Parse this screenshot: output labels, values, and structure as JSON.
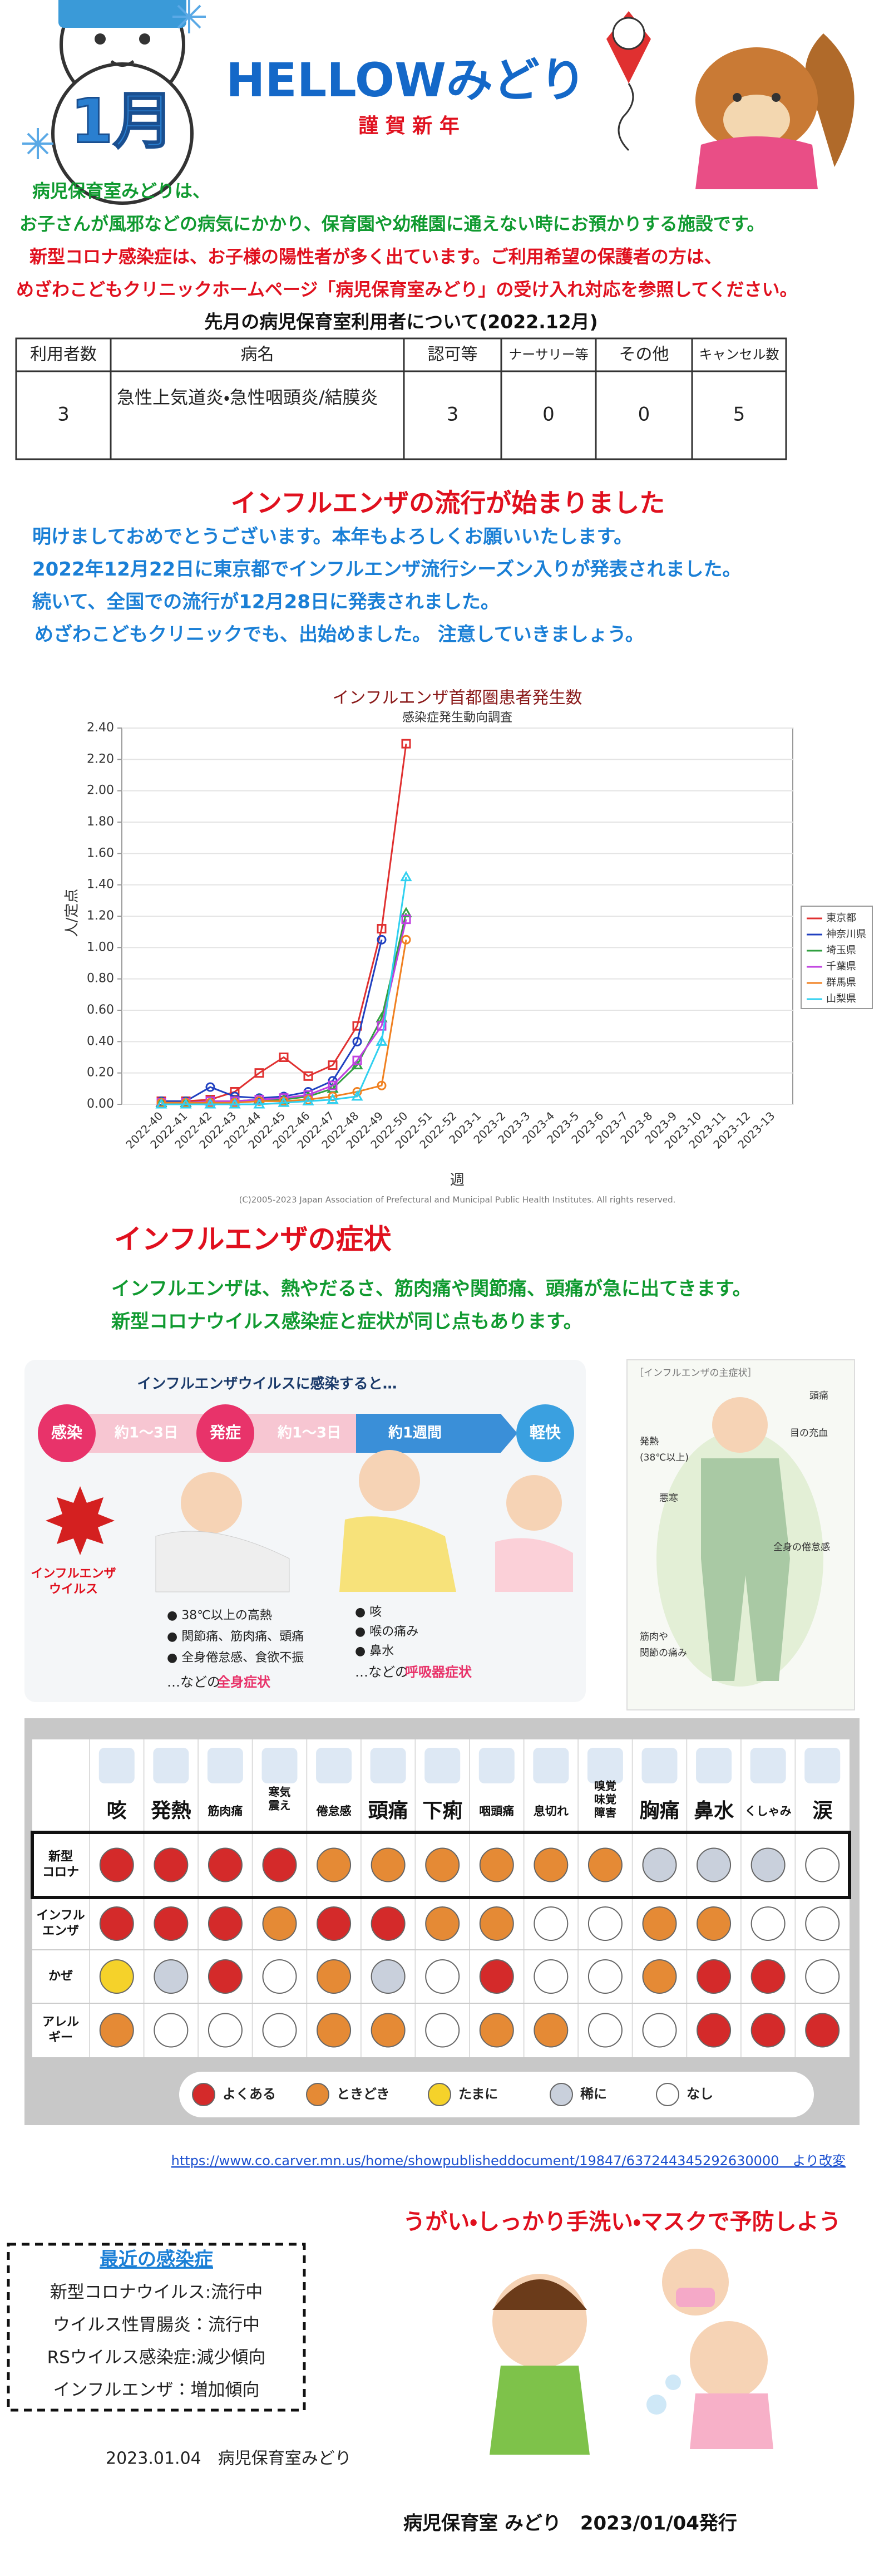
{
  "header": {
    "title": "HELLOWみどり",
    "greeting": "謹 賀 新 年",
    "month_badge": "1月"
  },
  "intro": {
    "lines": [
      "病児保育室みどりは、",
      "お子さんが風邪などの病気にかかり、保育園や幼稚園に通えない時にお預かりする施設です。",
      "新型コロナ感染症は、お子様の陽性者が多く出ています。ご利用希望の保護者の方は、",
      "めざわこどもクリニックホームページ「病児保育室みどり」の受け入れ対応を参照してください。"
    ]
  },
  "usage_table": {
    "caption": "先月の病児保育室利用者について(2022.12月)",
    "headers": [
      "利用者数",
      "病名",
      "認可等",
      "ナーサリー等",
      "その他",
      "キャンセル数"
    ],
    "rows": [
      [
        "3",
        "急性上気道炎・急性咽頭炎/結膜炎",
        "3",
        "0",
        "0",
        "5"
      ]
    ]
  },
  "flu_news": {
    "heading": "インフルエンザの流行が始まりました",
    "lines": [
      "明けましておめでとうございます。本年もよろしくお願いいたします。",
      "2022年12月22日に東京都でインフルエンザ流行シーズン入りが発表されました。",
      "続いて、全国での流行が12月28日に発表されました。",
      " めざわこどもクリニックでも、出始めました。 注意していきましょう。"
    ]
  },
  "flu_chart": {
    "type": "line",
    "title": "インフルエンザ首都圏患者発生数",
    "subtitle": "感染症発生動向調査",
    "x_label": "週",
    "y_label": "人/定点",
    "categories": [
      "2022-40",
      "2022-41",
      "2022-42",
      "2022-43",
      "2022-44",
      "2022-45",
      "2022-46",
      "2022-47",
      "2022-48",
      "2022-49",
      "2022-50",
      "2022-51",
      "2022-52",
      "2023-1",
      "2023-2",
      "2023-3",
      "2023-4",
      "2023-5",
      "2023-6",
      "2023-7",
      "2023-8",
      "2023-9",
      "2023-10",
      "2023-11",
      "2023-12",
      "2023-13"
    ],
    "series": [
      {
        "name": "東京都",
        "color": "#e03030",
        "values": [
          0.02,
          0.02,
          0.03,
          0.08,
          0.2,
          0.3,
          0.18,
          0.25,
          0.5,
          1.12,
          2.3,
          null,
          null,
          null,
          null,
          null,
          null,
          null,
          null,
          null,
          null,
          null,
          null,
          null,
          null,
          null
        ]
      },
      {
        "name": "神奈川県",
        "color": "#2040c0",
        "values": [
          0.02,
          0.02,
          0.11,
          0.05,
          0.04,
          0.05,
          0.08,
          0.15,
          0.4,
          1.05,
          null,
          null,
          null,
          null,
          null,
          null,
          null,
          null,
          null,
          null,
          null,
          null,
          null,
          null,
          null,
          null
        ]
      },
      {
        "name": "埼玉県",
        "color": "#30a040",
        "values": [
          0.01,
          0.01,
          0.02,
          0.02,
          0.03,
          0.03,
          0.05,
          0.1,
          0.25,
          0.55,
          1.22,
          null,
          null,
          null,
          null,
          null,
          null,
          null,
          null,
          null,
          null,
          null,
          null,
          null,
          null,
          null
        ]
      },
      {
        "name": "千葉県",
        "color": "#c040e0",
        "values": [
          0.01,
          0.01,
          0.02,
          0.02,
          0.03,
          0.04,
          0.06,
          0.12,
          0.28,
          0.5,
          1.18,
          null,
          null,
          null,
          null,
          null,
          null,
          null,
          null,
          null,
          null,
          null,
          null,
          null,
          null,
          null
        ]
      },
      {
        "name": "群馬県",
        "color": "#f08020",
        "values": [
          0.01,
          0.01,
          0.01,
          0.01,
          0.02,
          0.02,
          0.03,
          0.05,
          0.08,
          0.12,
          1.05,
          null,
          null,
          null,
          null,
          null,
          null,
          null,
          null,
          null,
          null,
          null,
          null,
          null,
          null,
          null
        ]
      },
      {
        "name": "山梨県",
        "color": "#30d0f0",
        "values": [
          0,
          0,
          0,
          0,
          0,
          0.01,
          0.02,
          0.03,
          0.05,
          0.4,
          1.45,
          null,
          null,
          null,
          null,
          null,
          null,
          null,
          null,
          null,
          null,
          null,
          null,
          null,
          null,
          null
        ]
      }
    ],
    "ylim": [
      0,
      2.4
    ],
    "yticks": [
      {
        "value": 0,
        "label": "0.00"
      },
      {
        "value": 0.2,
        "label": "0.20"
      },
      {
        "value": 0.4,
        "label": "0.40"
      },
      {
        "value": 0.6,
        "label": "0.60"
      },
      {
        "value": 0.8,
        "label": "0.80"
      },
      {
        "value": 1,
        "label": "1.00"
      },
      {
        "value": 1.2,
        "label": "1.20"
      },
      {
        "value": 1.4,
        "label": "1.40"
      },
      {
        "value": 1.6,
        "label": "1.60"
      },
      {
        "value": 1.8,
        "label": "1.80"
      },
      {
        "value": 2,
        "label": "2.00"
      },
      {
        "value": 2.2,
        "label": "2.20"
      },
      {
        "value": 2.4,
        "label": "2.40"
      }
    ],
    "grid": true,
    "copyright": "(C)2005-2023 Japan Association of Prefectural and Municipal Public Health Institutes. All rights reserved."
  },
  "symptoms": {
    "heading": "インフルエンザの症状",
    "lines": [
      "インフルエンザは、熱やだるさ、筋肉痛や関節痛、頭痛が急に出てきます。",
      "新型コロナウイルス感染症と症状が同じ点もあります。"
    ]
  },
  "course": {
    "title": "インフルエンザウイルスに感染すると…",
    "stages": [
      "感染",
      "発症",
      "軽快"
    ],
    "durations": [
      "約1～3日",
      "約1～3日",
      "約1週間"
    ],
    "virus_label": [
      "インフルエンザ",
      "ウイルス"
    ],
    "systemic": [
      "● 38℃以上の高熱",
      "● 関節痛、筋肉痛、頭痛",
      "● 全身倦怠感、食欲不振"
    ],
    "systemic_tail": [
      "…などの",
      "全身症状"
    ],
    "respiratory": [
      "● 咳",
      "● 喉の痛み",
      "● 鼻水"
    ],
    "respiratory_tail": [
      "…などの",
      "呼吸器症状"
    ]
  },
  "main_symptoms": {
    "title": "［インフルエンザの主症状］",
    "labels": [
      [
        "頭痛"
      ],
      [
        "目の充血"
      ],
      [
        "発熱",
        "(38℃以上)"
      ],
      [
        "悪寒"
      ],
      [
        "全身の倦怠感"
      ],
      [
        "筋肉や",
        "関節の痛み"
      ]
    ]
  },
  "comparison": {
    "columns": [
      [
        "咳"
      ],
      [
        "発熱"
      ],
      [
        "筋肉痛"
      ],
      [
        "寒気",
        "震え"
      ],
      [
        "倦怠感"
      ],
      [
        "頭痛"
      ],
      [
        "下痢"
      ],
      [
        "咽頭痛"
      ],
      [
        "息切れ"
      ],
      [
        "嗅覚",
        "味覚",
        "障害"
      ],
      [
        "胸痛"
      ],
      [
        "鼻水"
      ],
      [
        "くしゃみ"
      ],
      [
        "涙"
      ]
    ],
    "rows": [
      {
        "label": [
          "新型",
          "コロナ"
        ],
        "cells": [
          "#d42a2a",
          "#d42a2a",
          "#d42a2a",
          "#d42a2a",
          "#e58a35",
          "#e58a35",
          "#e58a35",
          "#e58a35",
          "#e58a35",
          "#e58a35",
          "#c9d0dc",
          "#c9d0dc",
          "#c9d0dc",
          "#ffffff"
        ]
      },
      {
        "label": [
          "インフル",
          "エンザ"
        ],
        "cells": [
          "#d42a2a",
          "#d42a2a",
          "#d42a2a",
          "#e58a35",
          "#d42a2a",
          "#d42a2a",
          "#e58a35",
          "#e58a35",
          "#ffffff",
          "#ffffff",
          "#e58a35",
          "#e58a35",
          "#ffffff",
          "#ffffff"
        ]
      },
      {
        "label": [
          "かぜ"
        ],
        "cells": [
          "#f5d22a",
          "#c9d0dc",
          "#d42a2a",
          "#ffffff",
          "#e58a35",
          "#c9d0dc",
          "#ffffff",
          "#d42a2a",
          "#ffffff",
          "#ffffff",
          "#e58a35",
          "#d42a2a",
          "#d42a2a",
          "#ffffff"
        ]
      },
      {
        "label": [
          "アレル",
          "ギー"
        ],
        "cells": [
          "#e58a35",
          "#ffffff",
          "#ffffff",
          "#ffffff",
          "#e58a35",
          "#e58a35",
          "#ffffff",
          "#e58a35",
          "#e58a35",
          "#ffffff",
          "#ffffff",
          "#d42a2a",
          "#d42a2a",
          "#d42a2a"
        ]
      }
    ],
    "legend": [
      {
        "label": "よくある",
        "color": "#d42a2a"
      },
      {
        "label": "ときどき",
        "color": "#e58a35"
      },
      {
        "label": "たまに",
        "color": "#f5d22a"
      },
      {
        "label": "稀に",
        "color": "#c9d0dc"
      },
      {
        "label": "なし",
        "color": "#ffffff"
      }
    ]
  },
  "source": "https://www.co.carver.mn.us/home/showpublisheddocument/19847/637244345292630000　より改変",
  "prevention": "うがい・しっかり手洗い・マスクで予防しよう",
  "recent": {
    "title": "最近の感染症",
    "items": [
      "新型コロナウイルス:流行中",
      "ウイルス性胃腸炎：流行中",
      "RSウイルス感染症:減少傾向",
      "インフルエンザ：増加傾向"
    ]
  },
  "signature": "2023.01.04　病児保育室みどり",
  "footer": "病児保育室 みどり　2023/01/04発行"
}
